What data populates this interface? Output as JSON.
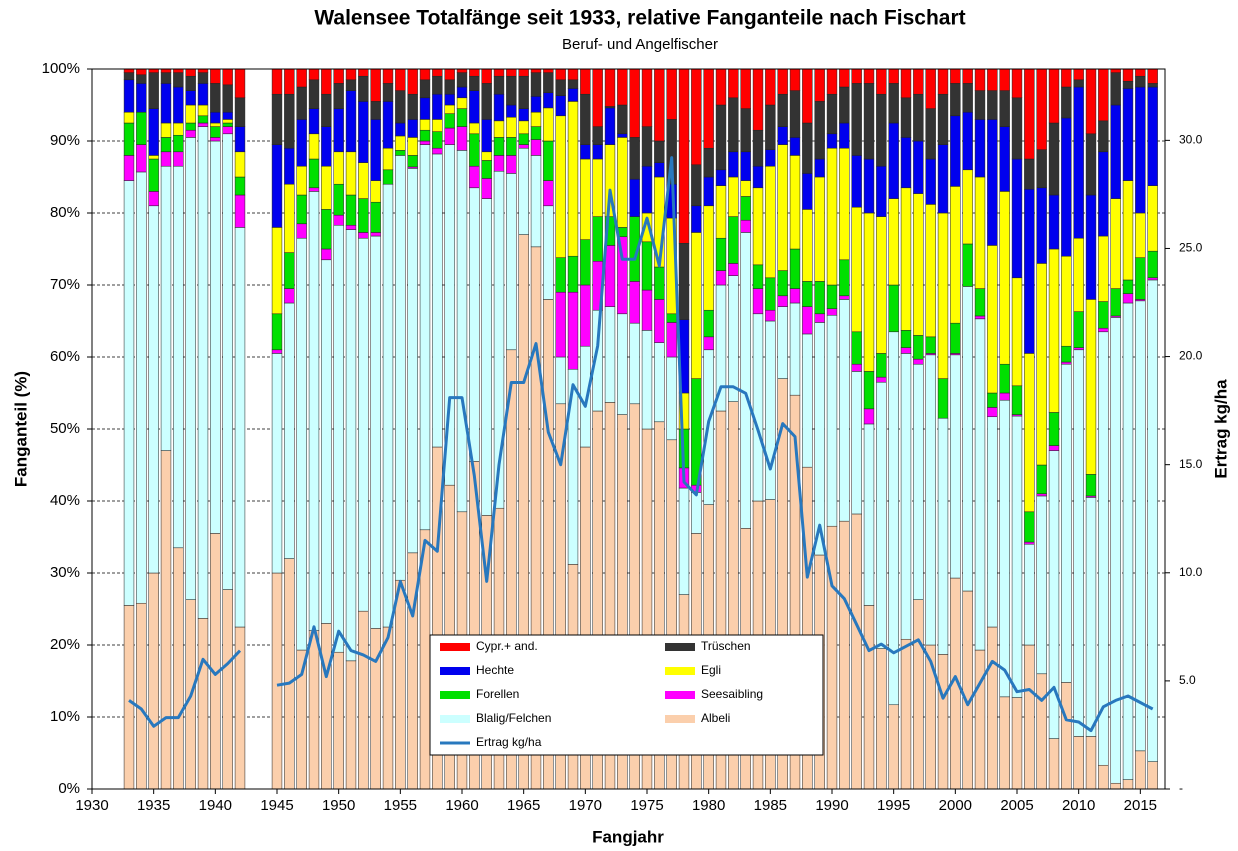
{
  "chart_data": {
    "type": "bar",
    "stacked": true,
    "title": "Walensee Totalfänge seit 1933, relative Fanganteile nach Fischart",
    "subtitle": "Beruf- und Angelfischer",
    "x_label": "Fangjahr",
    "y_label": "Fanganteil  (%)",
    "y2_label": "Ertrag kg/ha",
    "x": [
      1933,
      1934,
      1935,
      1936,
      1937,
      1938,
      1939,
      1940,
      1941,
      1942,
      1943,
      1944,
      1945,
      1946,
      1947,
      1948,
      1949,
      1950,
      1951,
      1952,
      1953,
      1954,
      1955,
      1956,
      1957,
      1958,
      1959,
      1960,
      1961,
      1962,
      1963,
      1964,
      1965,
      1966,
      1967,
      1968,
      1969,
      1970,
      1971,
      1972,
      1973,
      1974,
      1975,
      1976,
      1977,
      1978,
      1979,
      1980,
      1981,
      1982,
      1983,
      1984,
      1985,
      1986,
      1987,
      1988,
      1989,
      1990,
      1991,
      1992,
      1993,
      1994,
      1995,
      1996,
      1997,
      1998,
      1999,
      2000,
      2001,
      2002,
      2003,
      2004,
      2005,
      2006,
      2007,
      2008,
      2009,
      2010,
      2011,
      2012,
      2013,
      2014,
      2015,
      2016
    ],
    "xlim": [
      1930,
      2017
    ],
    "xticks": [
      1930,
      1935,
      1940,
      1945,
      1950,
      1955,
      1960,
      1965,
      1970,
      1975,
      1980,
      1985,
      1990,
      1995,
      2000,
      2005,
      2010,
      2015
    ],
    "ylim": [
      0,
      100
    ],
    "yticks": [
      {
        "value": 0,
        "label": "0%"
      },
      {
        "value": 10,
        "label": "10%"
      },
      {
        "value": 20,
        "label": "20%"
      },
      {
        "value": 30,
        "label": "30%"
      },
      {
        "value": 40,
        "label": "40%"
      },
      {
        "value": 50,
        "label": "50%"
      },
      {
        "value": 60,
        "label": "60%"
      },
      {
        "value": 70,
        "label": "70%"
      },
      {
        "value": 80,
        "label": "80%"
      },
      {
        "value": 90,
        "label": "90%"
      },
      {
        "value": 100,
        "label": "100%"
      }
    ],
    "y2lim": [
      0,
      33.3
    ],
    "y2ticks": [
      {
        "value": 0,
        "label": "-"
      },
      {
        "value": 5,
        "label": "5.0"
      },
      {
        "value": 10,
        "label": "10.0"
      },
      {
        "value": 15,
        "label": "15.0"
      },
      {
        "value": 20,
        "label": "20.0"
      },
      {
        "value": 25,
        "label": "25.0"
      },
      {
        "value": 30,
        "label": "30.0"
      }
    ],
    "grid": true,
    "legend": "bottom",
    "series": [
      {
        "name": "Albeli",
        "color": "#fbcfac",
        "values": [
          25.5,
          25.8,
          30,
          47,
          33.5,
          26.3,
          23.7,
          35.5,
          27.7,
          22.5,
          null,
          null,
          30,
          32,
          19.3,
          22,
          23,
          19,
          17.8,
          24.7,
          22.3,
          22.5,
          29,
          32.8,
          36,
          47.5,
          42.2,
          38.5,
          45.5,
          38,
          39,
          61,
          77,
          75.3,
          68,
          53.5,
          31.2,
          47.5,
          52.5,
          53.7,
          52,
          53.5,
          50,
          51,
          48.5,
          27,
          35.5,
          39.5,
          52.5,
          53.8,
          36.2,
          40,
          40.2,
          57,
          54.7,
          44.7,
          32.5,
          36.5,
          37.2,
          38.2,
          25.5,
          19.5,
          11.7,
          20.8,
          26.3,
          20,
          18.7,
          29.3,
          27.5,
          19.3,
          22.5,
          12.8,
          12.7,
          20,
          16,
          7,
          14.8,
          7.3,
          7.3,
          3.3,
          0.8,
          1.3,
          5.3,
          3.8
        ]
      },
      {
        "name": "Blalig/Felchen",
        "color": "#ccffff",
        "values": [
          59,
          59.9,
          51,
          39.5,
          53,
          64.2,
          68.3,
          54.5,
          63.3,
          55.5,
          null,
          null,
          30.5,
          35.5,
          57.2,
          61,
          50.5,
          59.3,
          59.9,
          51.8,
          54.5,
          61.5,
          59,
          53.4,
          53.5,
          40.7,
          47.3,
          50.2,
          38,
          44,
          46.8,
          24.5,
          12,
          12.7,
          13,
          6.5,
          27.1,
          14,
          14,
          13.3,
          14,
          11.2,
          13.7,
          11,
          11.5,
          14.8,
          5.7,
          21.5,
          17.5,
          17.5,
          41.1,
          26,
          24.8,
          10,
          12.8,
          18.5,
          32.3,
          29.3,
          30.8,
          19.8,
          25.2,
          37,
          51.8,
          39.7,
          32.7,
          40.3,
          32.8,
          31,
          42.3,
          46,
          29.2,
          41.2,
          39.1,
          14,
          24.7,
          40,
          44.2,
          53.7,
          33.2,
          60.2,
          64.7,
          66.2,
          62.5,
          66.9
        ]
      },
      {
        "name": "Seesaibling",
        "color": "#ff00ff",
        "values": [
          3.5,
          3.8,
          2,
          2,
          2,
          1,
          0.5,
          0.5,
          1,
          4.5,
          null,
          null,
          0.5,
          2,
          2,
          0.5,
          1.5,
          1.4,
          0.6,
          0.8,
          0.5,
          0,
          0,
          0.2,
          0.5,
          0.8,
          2.3,
          3.3,
          3,
          2.8,
          2.2,
          2.5,
          0.5,
          2.2,
          3.5,
          9,
          10.7,
          8.5,
          6.8,
          8.5,
          10.7,
          5.8,
          5.6,
          6,
          4.8,
          2.8,
          1,
          1.8,
          2,
          1.7,
          1.7,
          3.5,
          1.5,
          1.5,
          2,
          3.8,
          1.2,
          0.9,
          0.5,
          1,
          2.1,
          0.7,
          0,
          0.8,
          0.7,
          0.2,
          0,
          0.2,
          0,
          0.4,
          1.3,
          1,
          0.2,
          0.3,
          0.3,
          0.7,
          0.3,
          0.3,
          0.2,
          0.5,
          0.2,
          1.3,
          0.2,
          0.3
        ]
      },
      {
        "name": "Forellen",
        "color": "#00e000",
        "values": [
          4.5,
          4.5,
          4.5,
          2,
          2.3,
          1,
          1,
          1.5,
          0.5,
          2.5,
          null,
          null,
          5,
          5,
          4,
          4,
          5.5,
          4.3,
          4.2,
          4.7,
          4.2,
          2,
          0.7,
          1.6,
          1.5,
          2.3,
          2,
          2.5,
          4.5,
          2.5,
          2.5,
          2.5,
          1.5,
          1.8,
          5.5,
          4.8,
          5,
          6.3,
          6.2,
          4,
          1.3,
          9,
          6.7,
          4.5,
          1.2,
          5.4,
          14.8,
          3.7,
          4.5,
          6.5,
          3.3,
          3.3,
          4.5,
          3.5,
          5.5,
          3.5,
          4.5,
          3.3,
          5,
          4.5,
          5.2,
          3.3,
          6.5,
          2.4,
          3.3,
          2.3,
          5.5,
          4.2,
          5.9,
          3.8,
          2,
          4,
          4,
          4.2,
          4,
          4.6,
          2.2,
          5,
          3,
          3.7,
          3.8,
          1.9,
          5.8,
          3.7
        ]
      },
      {
        "name": "Egli",
        "color": "#ffff00",
        "values": [
          1.5,
          0,
          0.5,
          2,
          1.7,
          2.5,
          1.5,
          0.5,
          0.5,
          3.5,
          null,
          null,
          12,
          9.5,
          4,
          3.5,
          6,
          4.5,
          6,
          5,
          3,
          3,
          2,
          2.5,
          1.5,
          1.7,
          1.2,
          1.5,
          1.5,
          1.2,
          2.3,
          2.8,
          1.8,
          2,
          4.6,
          19.7,
          21.5,
          11.2,
          8,
          10,
          12.5,
          0,
          4,
          12.5,
          13.3,
          5,
          20.3,
          14.5,
          7.3,
          5.5,
          2.2,
          10.7,
          15.5,
          17.5,
          13,
          10,
          14.5,
          19,
          15.5,
          17.3,
          22,
          19,
          12,
          19.8,
          19.7,
          18.4,
          23,
          19,
          10.3,
          15.5,
          20.5,
          24,
          15,
          22,
          28,
          22.7,
          12.5,
          10.2,
          24.3,
          9.1,
          12.5,
          13.8,
          6.2,
          9.1
        ]
      },
      {
        "name": "Hechte",
        "color": "#0000ee",
        "values": [
          4.5,
          4,
          6.5,
          5.5,
          5,
          2,
          3,
          1.5,
          1,
          3.5,
          null,
          null,
          11.5,
          5,
          6.5,
          3.5,
          5.5,
          6,
          8.5,
          8.5,
          8.5,
          6.5,
          1.8,
          2.5,
          3,
          3.5,
          1.5,
          1.5,
          4.5,
          4.5,
          3.7,
          1.7,
          1.7,
          2.2,
          2.1,
          2.8,
          1.8,
          2,
          2,
          5.1,
          0.5,
          5.2,
          6.5,
          2,
          4.7,
          10.2,
          3.7,
          4,
          2.2,
          3.5,
          4,
          3,
          2.3,
          2.5,
          2.5,
          5,
          2.5,
          2,
          3.5,
          7.2,
          7.5,
          7,
          10.5,
          7,
          7.3,
          6.3,
          9.5,
          9.8,
          8,
          8,
          17.5,
          9,
          16.5,
          22.8,
          10.5,
          7.5,
          19.2,
          21,
          14.5,
          11.7,
          13,
          12.8,
          17.5,
          13.7
        ]
      },
      {
        "name": "Trüschen",
        "color": "#333333",
        "values": [
          1,
          1.2,
          5,
          1.5,
          2,
          2,
          1.5,
          4,
          3.8,
          4,
          null,
          null,
          7,
          7.5,
          4.5,
          4,
          4.5,
          3.5,
          1.5,
          3.5,
          2.5,
          2.5,
          4.5,
          3.5,
          2.5,
          2.5,
          2,
          2,
          2,
          5,
          2.5,
          4,
          4.5,
          3.3,
          2.8,
          2.2,
          1.2,
          7,
          2.5,
          0.2,
          4,
          5.8,
          5.5,
          3,
          9,
          10.6,
          5.7,
          4,
          9,
          7.5,
          6,
          5,
          6.2,
          4.5,
          6.5,
          7,
          8,
          5.5,
          5,
          10,
          10.5,
          10,
          5.5,
          5.5,
          6.5,
          7,
          7,
          4.5,
          4,
          4,
          4,
          5,
          8.5,
          4.2,
          5.3,
          10,
          4.3,
          1,
          8.5,
          4.3,
          4.5,
          1,
          1.5,
          0.5
        ]
      },
      {
        "name": "Cypr.+ and.",
        "color": "#ff0000",
        "values": [
          0.5,
          0.8,
          0.5,
          0.5,
          0.5,
          1,
          0.5,
          2,
          2.2,
          4,
          null,
          null,
          3.5,
          3.5,
          2.5,
          1.5,
          3.5,
          2,
          1.5,
          1,
          4.5,
          2,
          3,
          3.5,
          1.5,
          1,
          1.5,
          0.5,
          1,
          2,
          1,
          1,
          1,
          0.5,
          0.5,
          1.5,
          1.5,
          3.5,
          8,
          5.2,
          5,
          9.5,
          8,
          10,
          7,
          24.2,
          13.3,
          11,
          5,
          4,
          5.5,
          8.5,
          5,
          3.5,
          3,
          7.5,
          4.5,
          3.5,
          2.5,
          2,
          2,
          3.5,
          2,
          4,
          3.5,
          5.5,
          3.5,
          2,
          2,
          3,
          3,
          3,
          4,
          12.5,
          11.2,
          7.5,
          2.5,
          1.5,
          9,
          7.2,
          0.5,
          1.7,
          1,
          2
        ]
      },
      {
        "name": "Ertrag kg/ha",
        "type": "line",
        "axis": "y2",
        "color": "#2878be",
        "values": [
          4.1,
          3.7,
          2.9,
          3.3,
          3.3,
          4.3,
          6,
          5.3,
          5.8,
          6.4,
          null,
          null,
          4.8,
          4.9,
          5.3,
          7.5,
          5.2,
          7.3,
          6.4,
          6.2,
          5.9,
          7,
          9.6,
          8,
          11.5,
          11,
          18.1,
          18.1,
          14.5,
          9.6,
          15,
          18.8,
          18.8,
          20.6,
          16.5,
          15,
          18.7,
          17.7,
          20.5,
          27.7,
          24.5,
          24.5,
          26.4,
          24.2,
          29.2,
          14.2,
          13.6,
          17,
          18.6,
          18.6,
          18.3,
          16.6,
          14.8,
          16.9,
          16.3,
          9.8,
          12.2,
          9.4,
          8.8,
          7.6,
          6.4,
          6.7,
          6.3,
          6.6,
          6.9,
          5.9,
          4.2,
          5.2,
          3.9,
          4.9,
          5.9,
          5.5,
          4.5,
          4.6,
          4.1,
          4.7,
          3.2,
          3.1,
          2.7,
          3.8,
          4.1,
          4.3,
          4,
          3.7
        ]
      }
    ]
  }
}
